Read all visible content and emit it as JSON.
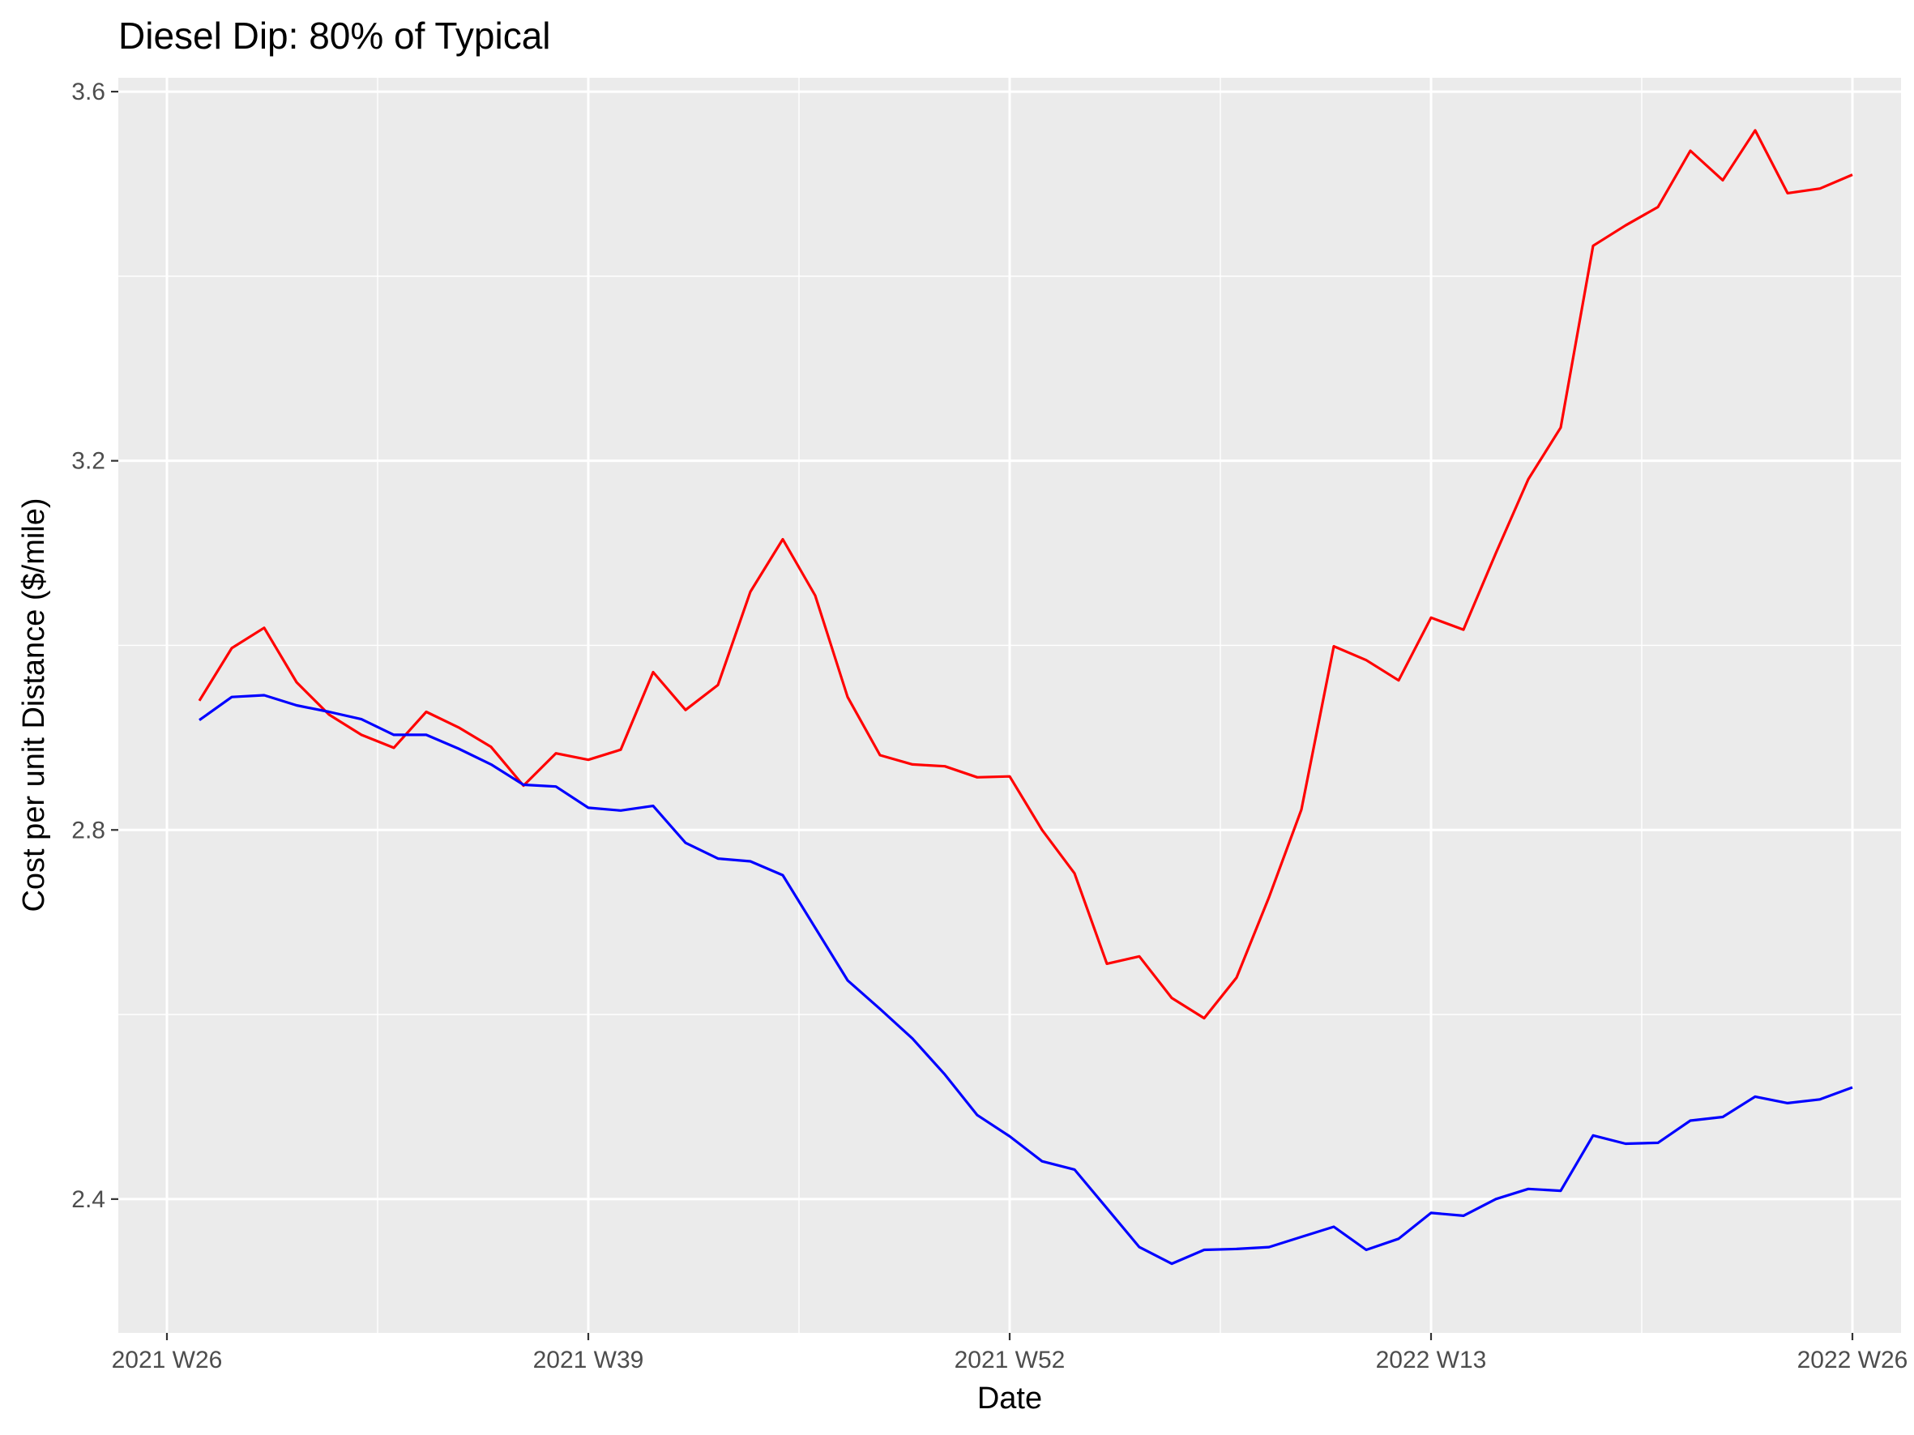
{
  "chart_data": {
    "type": "line",
    "title": "Diesel Dip: 80% of Typical",
    "xlabel": "Date",
    "ylabel": "Cost per unit Distance ($/mile)",
    "x_ticks": [
      {
        "week": 0,
        "label": "2021 W26"
      },
      {
        "week": 13,
        "label": "2021 W39"
      },
      {
        "week": 26,
        "label": "2021 W52"
      },
      {
        "week": 39,
        "label": "2022 W13"
      },
      {
        "week": 52,
        "label": "2022 W26"
      }
    ],
    "y_ticks": [
      2.4,
      2.8,
      3.2,
      3.6
    ],
    "xlim": [
      -1.5,
      53.5
    ],
    "ylim": [
      2.255,
      3.615
    ],
    "grid": true,
    "legend": "none",
    "weeks": [
      1,
      2,
      3,
      4,
      5,
      6,
      7,
      8,
      9,
      10,
      11,
      12,
      13,
      14,
      15,
      16,
      17,
      18,
      19,
      20,
      21,
      22,
      23,
      24,
      25,
      26,
      27,
      28,
      29,
      30,
      31,
      32,
      33,
      34,
      35,
      36,
      37,
      38,
      39,
      40,
      41,
      42,
      43,
      44,
      45,
      46,
      47,
      48,
      49,
      50,
      51,
      52
    ],
    "series": [
      {
        "color": "#ff0000",
        "values": [
          2.94,
          2.997,
          3.019,
          2.96,
          2.925,
          2.903,
          2.889,
          2.928,
          2.911,
          2.89,
          2.848,
          2.883,
          2.876,
          2.887,
          2.971,
          2.93,
          2.957,
          3.058,
          3.115,
          3.054,
          2.944,
          2.881,
          2.871,
          2.869,
          2.857,
          2.858,
          2.8,
          2.753,
          2.655,
          2.663,
          2.618,
          2.596,
          2.64,
          2.727,
          2.822,
          2.999,
          2.984,
          2.962,
          3.03,
          3.017,
          3.1,
          3.18,
          3.236,
          3.433,
          3.455,
          3.475,
          3.536,
          3.504,
          3.558,
          3.49,
          3.495,
          3.51
        ]
      },
      {
        "color": "#0000ff",
        "values": [
          2.919,
          2.944,
          2.946,
          2.935,
          2.928,
          2.92,
          2.903,
          2.903,
          2.888,
          2.871,
          2.849,
          2.847,
          2.824,
          2.821,
          2.826,
          2.786,
          2.769,
          2.766,
          2.751,
          2.694,
          2.637,
          2.606,
          2.574,
          2.535,
          2.491,
          2.468,
          2.441,
          2.432,
          2.39,
          2.348,
          2.33,
          2.345,
          2.346,
          2.348,
          2.359,
          2.37,
          2.345,
          2.357,
          2.385,
          2.382,
          2.4,
          2.411,
          2.409,
          2.469,
          2.46,
          2.461,
          2.485,
          2.489,
          2.511,
          2.504,
          2.508,
          2.521
        ]
      }
    ]
  }
}
